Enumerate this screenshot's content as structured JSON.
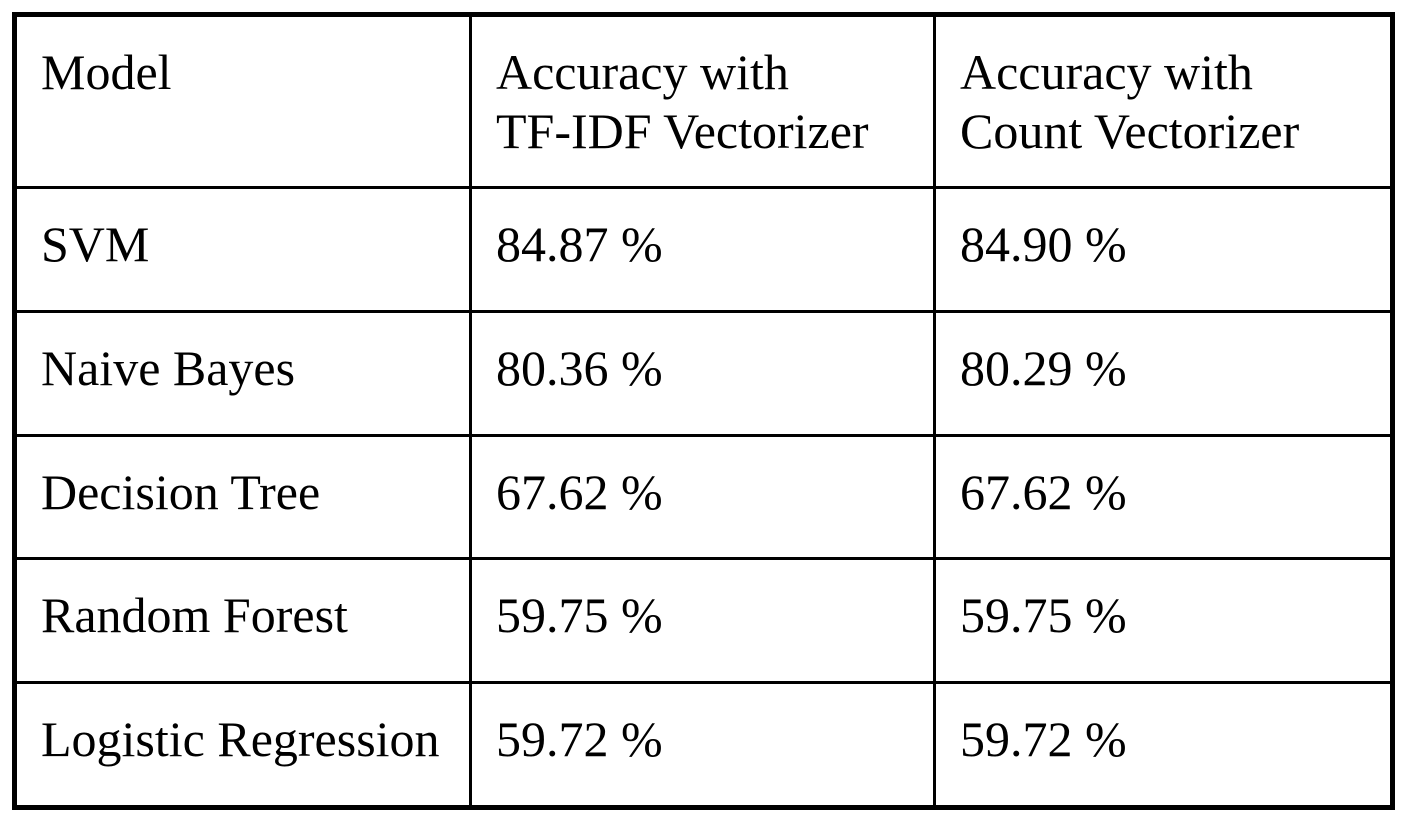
{
  "colors": {
    "background": "#ffffff",
    "border": "#000000",
    "text": "#000000"
  },
  "table": {
    "headers": [
      {
        "id": "model",
        "label": "Model"
      },
      {
        "id": "tfidf",
        "label": "Accuracy with\nTF-IDF Vectorizer"
      },
      {
        "id": "count",
        "label": "Accuracy with\nCount Vectorizer"
      }
    ],
    "rows": [
      {
        "cells": [
          "SVM",
          "84.87 %",
          "84.90 %"
        ]
      },
      {
        "cells": [
          "Naive Bayes",
          "80.36 %",
          "80.29 %"
        ]
      },
      {
        "cells": [
          "Decision Tree",
          "67.62 %",
          "67.62 %"
        ]
      },
      {
        "cells": [
          "Random Forest",
          "59.75 %",
          "59.75 %"
        ]
      },
      {
        "cells": [
          "Logistic Regression",
          "59.72 %",
          "59.72 %"
        ]
      }
    ]
  },
  "chart_data": {
    "type": "table",
    "title": "",
    "columns": [
      "Model",
      "Accuracy with TF-IDF Vectorizer",
      "Accuracy with Count Vectorizer"
    ],
    "categories": [
      "SVM",
      "Naive Bayes",
      "Decision Tree",
      "Random Forest",
      "Logistic Regression"
    ],
    "series": [
      {
        "name": "Accuracy with TF-IDF Vectorizer",
        "values": [
          84.87,
          80.36,
          67.62,
          59.75,
          59.72
        ]
      },
      {
        "name": "Accuracy with Count Vectorizer",
        "values": [
          84.9,
          80.29,
          67.62,
          59.75,
          59.72
        ]
      }
    ],
    "unit": "%",
    "rows": [
      [
        "SVM",
        "84.87 %",
        "84.90 %"
      ],
      [
        "Naive Bayes",
        "80.36 %",
        "80.29 %"
      ],
      [
        "Decision Tree",
        "67.62 %",
        "67.62 %"
      ],
      [
        "Random Forest",
        "59.75 %",
        "59.75 %"
      ],
      [
        "Logistic Regression",
        "59.72 %",
        "59.72 %"
      ]
    ]
  }
}
